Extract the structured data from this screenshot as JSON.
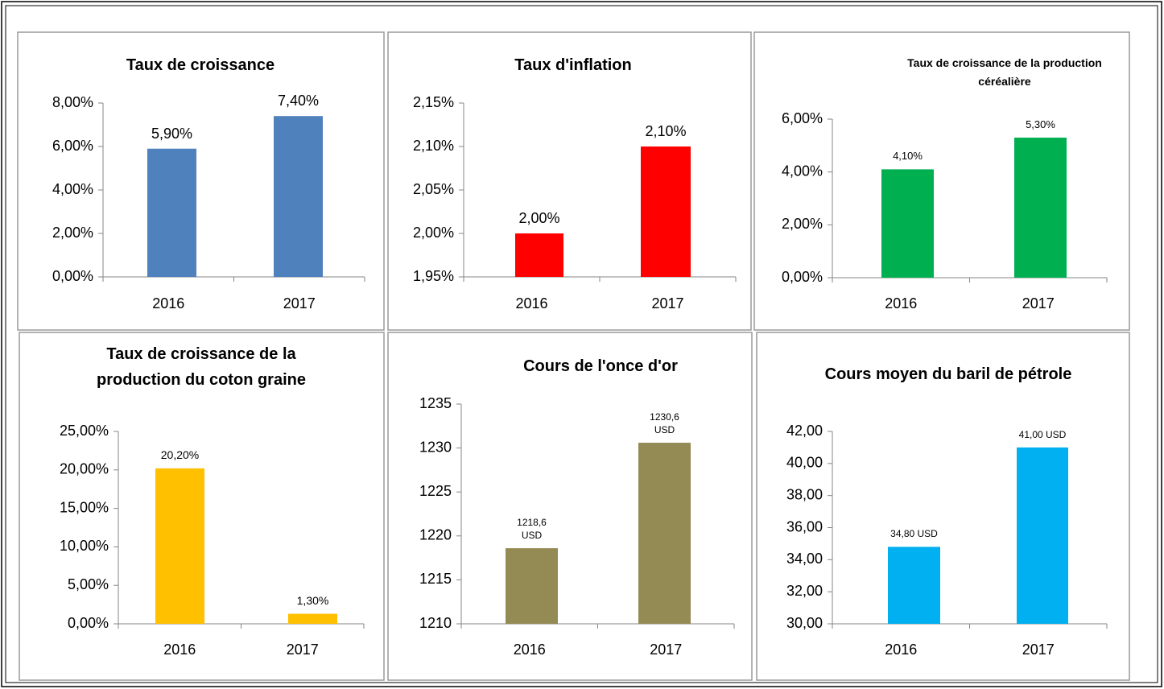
{
  "chart_data": [
    {
      "type": "bar",
      "title": "Taux de croissance",
      "categories": [
        "2016",
        "2017"
      ],
      "values": [
        5.9,
        7.4
      ],
      "value_labels": [
        "5,90%",
        "7,40%"
      ],
      "color": "#4f81bd",
      "ylim": [
        0,
        8
      ],
      "yticks": [
        {
          "value": 0,
          "label": "0,00%"
        },
        {
          "value": 2,
          "label": "2,00%"
        },
        {
          "value": 4,
          "label": "4,00%"
        },
        {
          "value": 6,
          "label": "6,00%"
        },
        {
          "value": 8,
          "label": "8,00%"
        }
      ]
    },
    {
      "type": "bar",
      "title": "Taux d'inflation",
      "categories": [
        "2016",
        "2017"
      ],
      "values": [
        2.0,
        2.1
      ],
      "value_labels": [
        "2,00%",
        "2,10%"
      ],
      "color": "#ff0000",
      "ylim": [
        1.95,
        2.15
      ],
      "yticks": [
        {
          "value": 1.95,
          "label": "1,95%"
        },
        {
          "value": 2.0,
          "label": "2,00%"
        },
        {
          "value": 2.05,
          "label": "2,05%"
        },
        {
          "value": 2.1,
          "label": "2,10%"
        },
        {
          "value": 2.15,
          "label": "2,15%"
        }
      ]
    },
    {
      "type": "bar",
      "title": "Taux de croissance de la production céréalière",
      "categories": [
        "2016",
        "2017"
      ],
      "values": [
        4.1,
        5.3
      ],
      "value_labels": [
        "4,10%",
        "5,30%"
      ],
      "color": "#00b050",
      "ylim": [
        0,
        6
      ],
      "yticks": [
        {
          "value": 0,
          "label": "0,00%"
        },
        {
          "value": 2,
          "label": "2,00%"
        },
        {
          "value": 4,
          "label": "4,00%"
        },
        {
          "value": 6,
          "label": "6,00%"
        }
      ]
    },
    {
      "type": "bar",
      "title": "Taux de croissance de la production du coton graine",
      "categories": [
        "2016",
        "2017"
      ],
      "values": [
        20.2,
        1.3
      ],
      "value_labels": [
        "20,20%",
        "1,30%"
      ],
      "color": "#ffc000",
      "ylim": [
        0,
        25
      ],
      "yticks": [
        {
          "value": 0,
          "label": "0,00%"
        },
        {
          "value": 5,
          "label": "5,00%"
        },
        {
          "value": 10,
          "label": "10,00%"
        },
        {
          "value": 15,
          "label": "15,00%"
        },
        {
          "value": 20,
          "label": "20,00%"
        },
        {
          "value": 25,
          "label": "25,00%"
        }
      ]
    },
    {
      "type": "bar",
      "title": "Cours de l'once d'or",
      "categories": [
        "2016",
        "2017"
      ],
      "values": [
        1218.6,
        1230.6
      ],
      "value_labels": [
        "1218,6 USD",
        "1230,6 USD"
      ],
      "color": "#948a54",
      "ylim": [
        1210,
        1235
      ],
      "yticks": [
        1210,
        1215,
        1220,
        1225,
        1230,
        1235
      ]
    },
    {
      "type": "bar",
      "title": "Cours moyen du baril de pétrole",
      "categories": [
        "2016",
        "2017"
      ],
      "values": [
        34.8,
        41.0
      ],
      "value_labels": [
        "34,80 USD",
        "41,00 USD"
      ],
      "color": "#00b0f0",
      "ylim": [
        30,
        42
      ],
      "yticks": [
        {
          "value": 30,
          "label": "30,00"
        },
        {
          "value": 32,
          "label": "32,00"
        },
        {
          "value": 34,
          "label": "34,00"
        },
        {
          "value": 36,
          "label": "36,00"
        },
        {
          "value": 38,
          "label": "38,00"
        },
        {
          "value": 40,
          "label": "40,00"
        },
        {
          "value": 42,
          "label": "42,00"
        }
      ]
    }
  ]
}
